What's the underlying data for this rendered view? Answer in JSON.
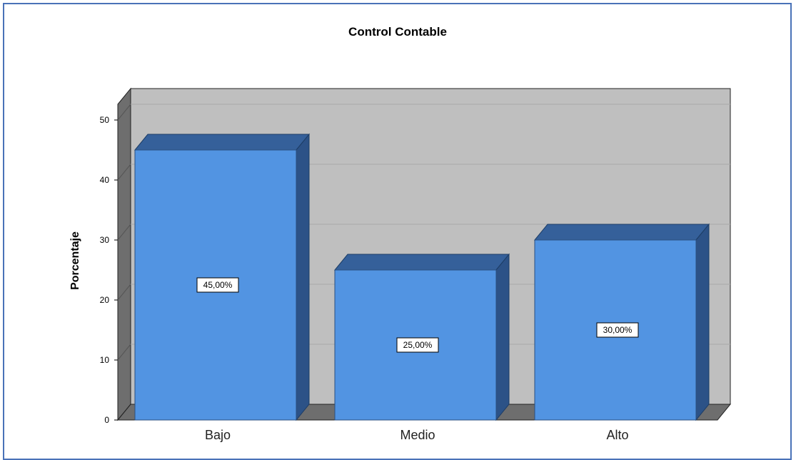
{
  "chart_data": {
    "type": "bar",
    "title": "Control Contable",
    "xlabel": "",
    "ylabel": "Porcentaje",
    "categories": [
      "Bajo",
      "Medio",
      "Alto"
    ],
    "values": [
      45,
      25,
      30
    ],
    "data_labels": [
      "45,00%",
      "25,00%",
      "30,00%"
    ],
    "yticks": [
      "0",
      "10",
      "20",
      "30",
      "40",
      "50"
    ],
    "ylim": [
      0,
      50
    ],
    "grid": true,
    "style": "3d",
    "colors": {
      "bar_front": "#5294e2",
      "bar_top": "#35609a",
      "bar_side": "#2c5287",
      "plot_bg": "#bfbfbf",
      "wall_side": "#6e6e6e",
      "floor": "#6e6e6e",
      "gridline": "#aaaaaa"
    }
  }
}
